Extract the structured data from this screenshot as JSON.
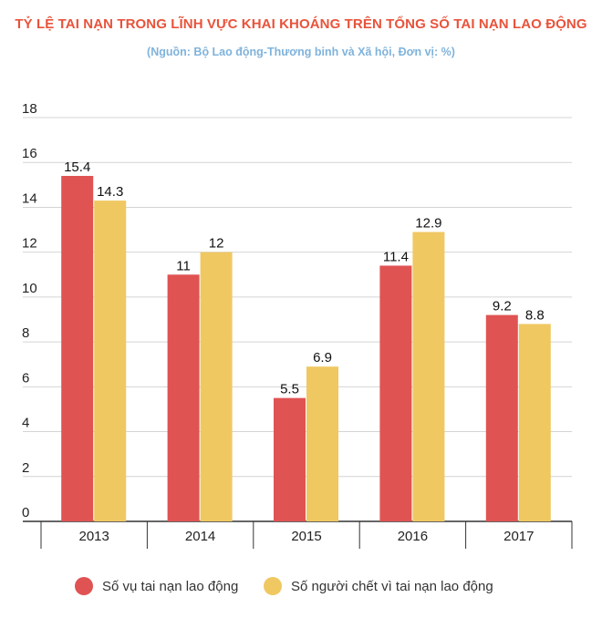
{
  "title": "TỶ LỆ TAI NẠN TRONG LĨNH VỰC KHAI KHOÁNG TRÊN TỔNG SỐ TAI NẠN LAO ĐỘNG",
  "subtitle": "(Nguồn: Bộ Lao động-Thương binh và Xã hội, Đơn vị: %)",
  "colors": {
    "series1": "#e05353",
    "series2": "#f0c862",
    "grid": "#d4d4d4",
    "axis": "#333333"
  },
  "chart_data": {
    "type": "bar",
    "categories": [
      "2013",
      "2014",
      "2015",
      "2016",
      "2017"
    ],
    "series": [
      {
        "name": "Số vụ tai nạn lao động",
        "values": [
          15.4,
          11,
          5.5,
          11.4,
          9.2
        ]
      },
      {
        "name": "Số người chết vì tai nạn lao động",
        "values": [
          14.3,
          12,
          6.9,
          12.9,
          8.8
        ]
      }
    ],
    "value_labels": [
      [
        "15.4",
        "11",
        "5.5",
        "11.4",
        "9.2"
      ],
      [
        "14.3",
        "12",
        "6.9",
        "12.9",
        "8.8"
      ]
    ],
    "ylim": [
      0,
      18
    ],
    "yticks": [
      "0",
      "2",
      "4",
      "6",
      "8",
      "10",
      "12",
      "14",
      "16",
      "18"
    ],
    "grid": true,
    "legend_position": "bottom"
  }
}
